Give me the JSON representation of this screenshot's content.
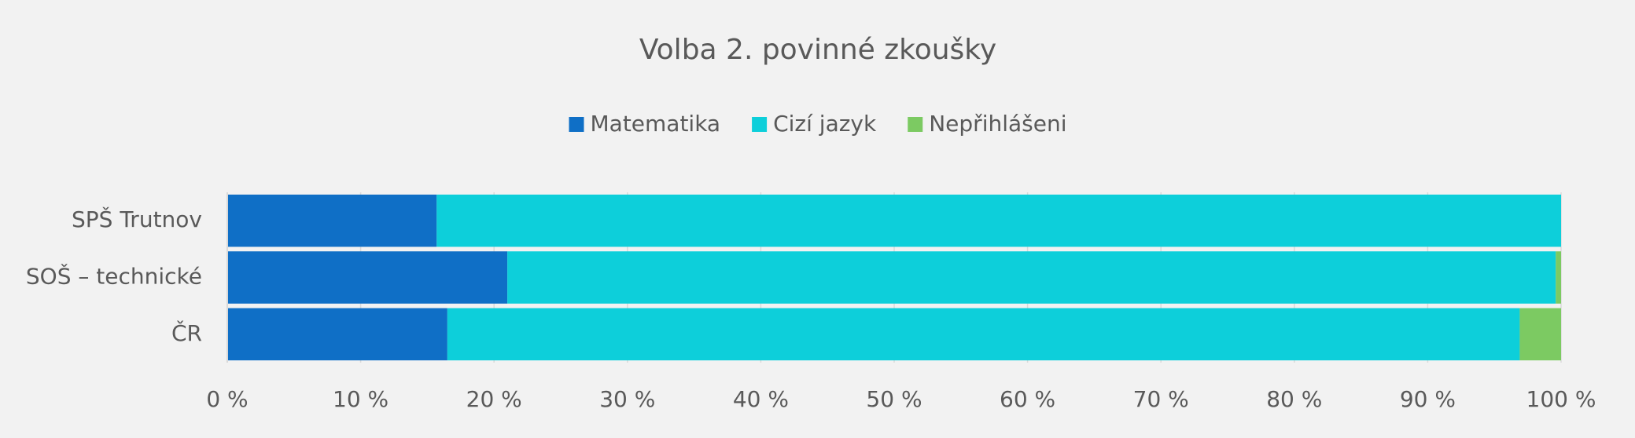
{
  "chart_data": {
    "type": "stacked-barh",
    "title": "Volba 2. povinné zkoušky",
    "categories": [
      "SPŠ Trutnov",
      "SOŠ – technické",
      "ČR"
    ],
    "series": [
      {
        "name": "Matematika",
        "color": "#0f6fc6",
        "values": [
          15.7,
          21.0,
          16.5
        ]
      },
      {
        "name": "Cizí jazyk",
        "color": "#0dcfda",
        "values": [
          84.3,
          78.6,
          80.4
        ]
      },
      {
        "name": "Nepřihlášeni",
        "color": "#7cca62",
        "values": [
          0,
          0.4,
          3.1
        ]
      }
    ],
    "xlim": [
      0,
      100
    ],
    "xticks": [
      {
        "value": 0,
        "label": "0 %"
      },
      {
        "value": 10,
        "label": "10 %"
      },
      {
        "value": 20,
        "label": "20 %"
      },
      {
        "value": 30,
        "label": "30 %"
      },
      {
        "value": 40,
        "label": "40 %"
      },
      {
        "value": 50,
        "label": "50 %"
      },
      {
        "value": 60,
        "label": "60 %"
      },
      {
        "value": 70,
        "label": "70 %"
      },
      {
        "value": 80,
        "label": "80 %"
      },
      {
        "value": 90,
        "label": "90 %"
      },
      {
        "value": 100,
        "label": "100 %"
      }
    ],
    "grid": true,
    "legend": "top"
  }
}
